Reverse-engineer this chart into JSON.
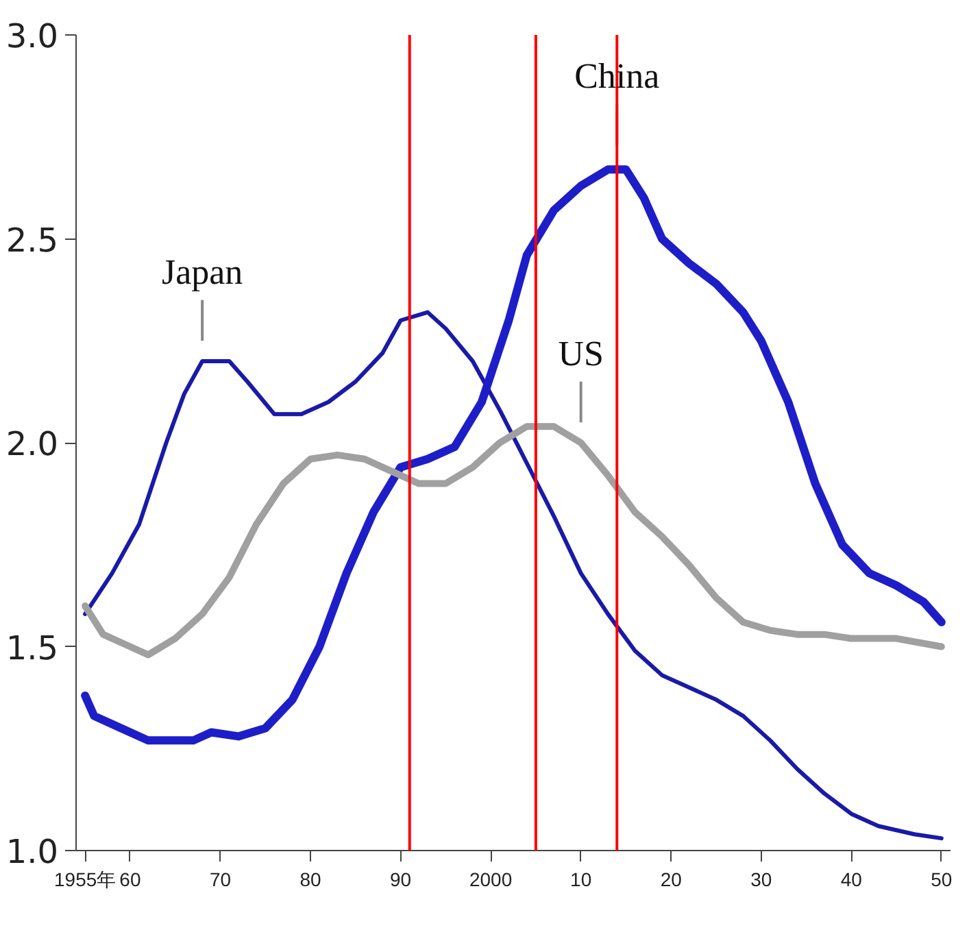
{
  "chart_data": {
    "type": "line",
    "x": [
      1955,
      1958,
      1961,
      1964,
      1966,
      1968,
      1971,
      1973,
      1976,
      1979,
      1982,
      1985,
      1988,
      1990,
      1993,
      1995,
      1998,
      2001,
      2004,
      2007,
      2010,
      2013,
      2016,
      2019,
      2022,
      2025,
      2028,
      2031,
      2034,
      2037,
      2040,
      2043,
      2047,
      2050
    ],
    "series": [
      {
        "color": "#1a1aa8",
        "values": [
          1.58,
          1.68,
          1.8,
          2.0,
          2.12,
          2.2,
          2.2,
          2.15,
          2.07,
          2.07,
          2.1,
          2.15,
          2.22,
          2.3,
          2.32,
          2.28,
          2.2,
          2.08,
          1.95,
          1.82,
          1.68,
          1.58,
          1.49,
          1.43,
          1.4,
          1.37,
          1.33,
          1.27,
          1.2,
          1.14,
          1.09,
          1.06,
          1.04,
          1.03
        ]
      },
      {
        "color": "#1e1ec8",
        "x": [
          1955,
          1956,
          1959,
          1962,
          1967,
          1969,
          1972,
          1975,
          1978,
          1981,
          1984,
          1987,
          1990,
          1993,
          1996,
          1999,
          2002,
          2004,
          2007,
          2010,
          2013,
          2015,
          2017,
          2019,
          2022,
          2025,
          2028,
          2030,
          2033,
          2036,
          2039,
          2042,
          2045,
          2048,
          2050
        ],
        "values": [
          1.38,
          1.33,
          1.3,
          1.27,
          1.27,
          1.29,
          1.28,
          1.3,
          1.37,
          1.5,
          1.68,
          1.83,
          1.94,
          1.96,
          1.99,
          2.1,
          2.3,
          2.46,
          2.57,
          2.63,
          2.67,
          2.67,
          2.6,
          2.5,
          2.44,
          2.39,
          2.32,
          2.25,
          2.1,
          1.9,
          1.75,
          1.68,
          1.65,
          1.61,
          1.56
        ]
      },
      {
        "color": "#a0a0a0",
        "x": [
          1955,
          1957,
          1960,
          1962,
          1965,
          1968,
          1971,
          1974,
          1977,
          1980,
          1983,
          1986,
          1989,
          1992,
          1995,
          1998,
          2001,
          2004,
          2007,
          2010,
          2013,
          2016,
          2019,
          2022,
          2025,
          2028,
          2031,
          2034,
          2037,
          2040,
          2045,
          2050
        ],
        "values": [
          1.6,
          1.53,
          1.5,
          1.48,
          1.52,
          1.58,
          1.67,
          1.8,
          1.9,
          1.96,
          1.97,
          1.96,
          1.93,
          1.9,
          1.9,
          1.94,
          2.0,
          2.04,
          2.04,
          2.0,
          1.92,
          1.83,
          1.77,
          1.7,
          1.62,
          1.56,
          1.54,
          1.53,
          1.53,
          1.52,
          1.52,
          1.5
        ]
      }
    ],
    "annotations": [
      {
        "text": "Japan",
        "x": 1968,
        "y": 2.2
      },
      {
        "text": "China",
        "x": 2014,
        "y": 2.68
      },
      {
        "text": "US",
        "x": 2010,
        "y": 2.0
      }
    ],
    "ref_lines": [
      {
        "axis": "x",
        "value": 1991,
        "color": "#ff0000"
      },
      {
        "axis": "x",
        "value": 2005,
        "color": "#ff0000"
      },
      {
        "axis": "x",
        "value": 2014,
        "color": "#ff0000"
      }
    ],
    "xlim": [
      1954,
      2051
    ],
    "ylim": [
      1.0,
      3.0
    ],
    "xticks": [
      {
        "value": 1955,
        "label": "1955年"
      },
      {
        "value": 1960,
        "label": "60"
      },
      {
        "value": 1970,
        "label": "70"
      },
      {
        "value": 1980,
        "label": "80"
      },
      {
        "value": 1990,
        "label": "90"
      },
      2000,
      {
        "value": 2010,
        "label": "10"
      },
      {
        "value": 2020,
        "label": "20"
      },
      {
        "value": 2030,
        "label": "30"
      },
      {
        "value": 2040,
        "label": "40"
      },
      {
        "value": 2050,
        "label": "50"
      }
    ],
    "yticks": [
      {
        "value": 1,
        "label": "1.0"
      },
      {
        "value": 1.5,
        "label": "1.5"
      },
      {
        "value": 2,
        "label": "2.0"
      },
      {
        "value": 2.5,
        "label": "2.5"
      },
      {
        "value": 3,
        "label": "3.0"
      }
    ],
    "grid": false
  }
}
